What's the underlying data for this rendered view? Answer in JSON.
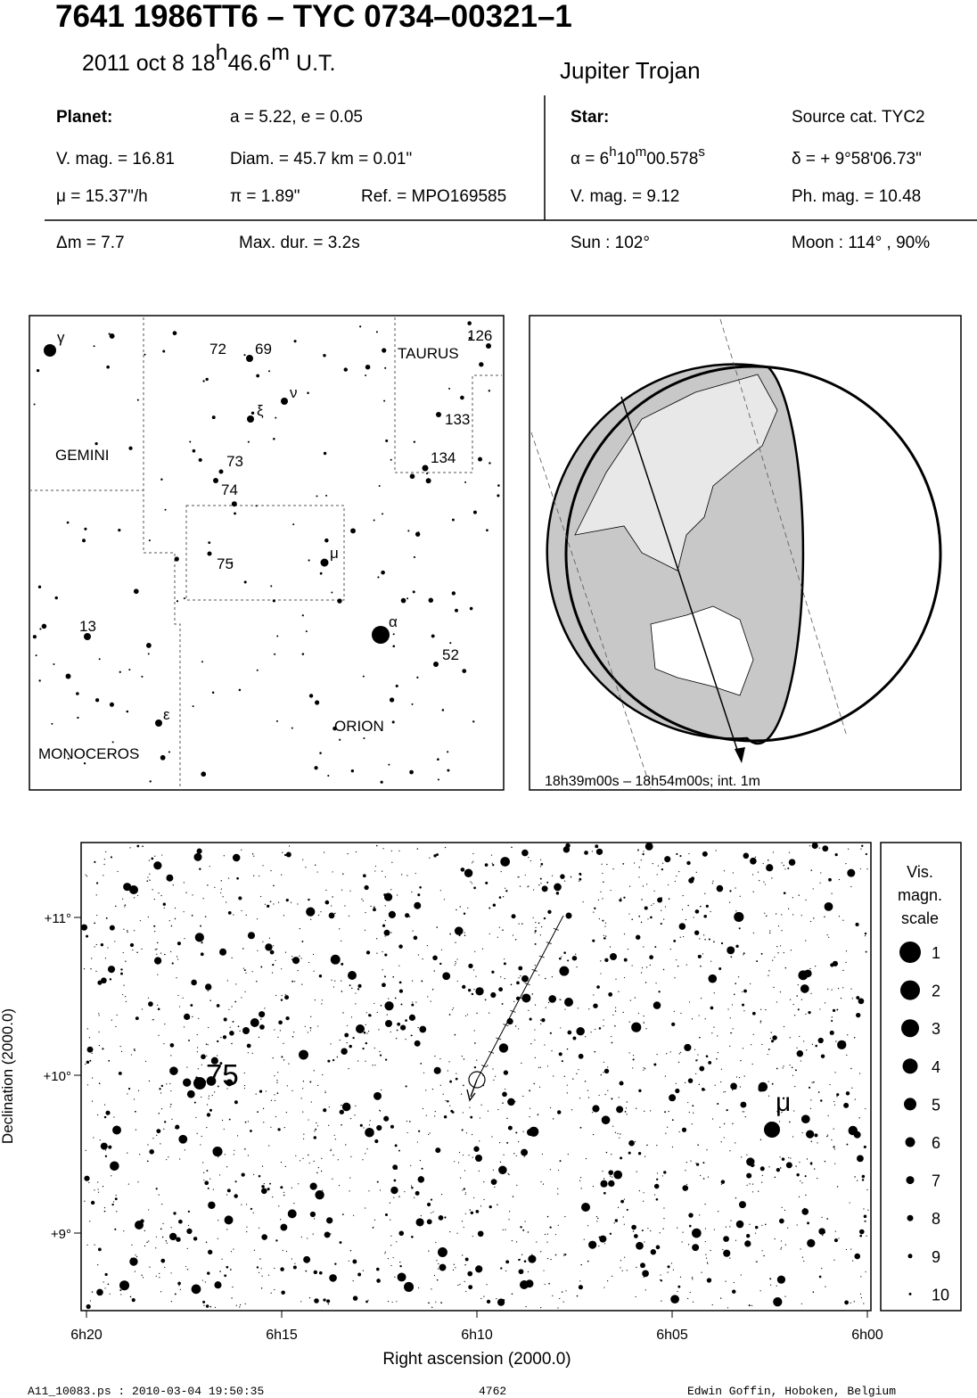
{
  "header": {
    "title": "7641 1986TT6  –  TYC 0734–00321–1",
    "date_parts": [
      "2011 oct  8  18",
      "h",
      "46.6",
      "m",
      " U.T."
    ],
    "class": "Jupiter Trojan"
  },
  "planet": {
    "heading": "Planet:",
    "orbit": "a = 5.22, e = 0.05",
    "vmag": "V. mag. = 16.81",
    "diam": "Diam. = 45.7 km = 0.01\"",
    "motion": "μ =  15.37\"/h",
    "parallax": "π =  1.89\"",
    "ref": "Ref. = MPO169585"
  },
  "star": {
    "heading": "Star:",
    "source": "Source cat.  TYC2",
    "ra_label": "α =  ",
    "ra_parts": [
      "6",
      "h",
      "10",
      "m",
      "00.578",
      "s"
    ],
    "dec": "δ = + 9°58'06.73\"",
    "vmag": "V. mag. =  9.12",
    "phmag": "Ph. mag. = 10.48"
  },
  "event": {
    "dmag": "Δm = 7.7",
    "maxdur": "Max. dur. = 3.2s",
    "sun": "Sun : 102°",
    "moon": "Moon : 114° , 90%"
  },
  "finder": {
    "labels": [
      "γ",
      "72",
      "69",
      "126",
      "TAURUS",
      "ν",
      "ξ",
      "133",
      "GEMINI",
      "73",
      "134",
      "74",
      "μ",
      "75",
      "α",
      "13",
      "52",
      "ε",
      "ORION",
      "MONOCEROS"
    ]
  },
  "globe": {
    "caption": "18h39m00s – 18h54m00s; int.  1m"
  },
  "chart": {
    "xticks": [
      "6h20",
      "6h15",
      "6h10",
      "6h05",
      "6h00"
    ],
    "yticks": [
      "+11°",
      "+10°",
      "+9°"
    ],
    "xlabel": "Right ascension (2000.0)",
    "ylabel": "Declination (2000.0)",
    "labels": [
      "75",
      "μ"
    ],
    "scale_title": [
      "Vis.",
      "magn.",
      "scale"
    ],
    "scale": [
      "1",
      "2",
      "3",
      "4",
      "5",
      "6",
      "7",
      "8",
      "9",
      "10"
    ]
  },
  "footer": {
    "file": "A11_10083.ps : 2010-03-04 19:50:35",
    "number": "4762",
    "author": "Edwin Goffin, Hoboken, Belgium"
  }
}
